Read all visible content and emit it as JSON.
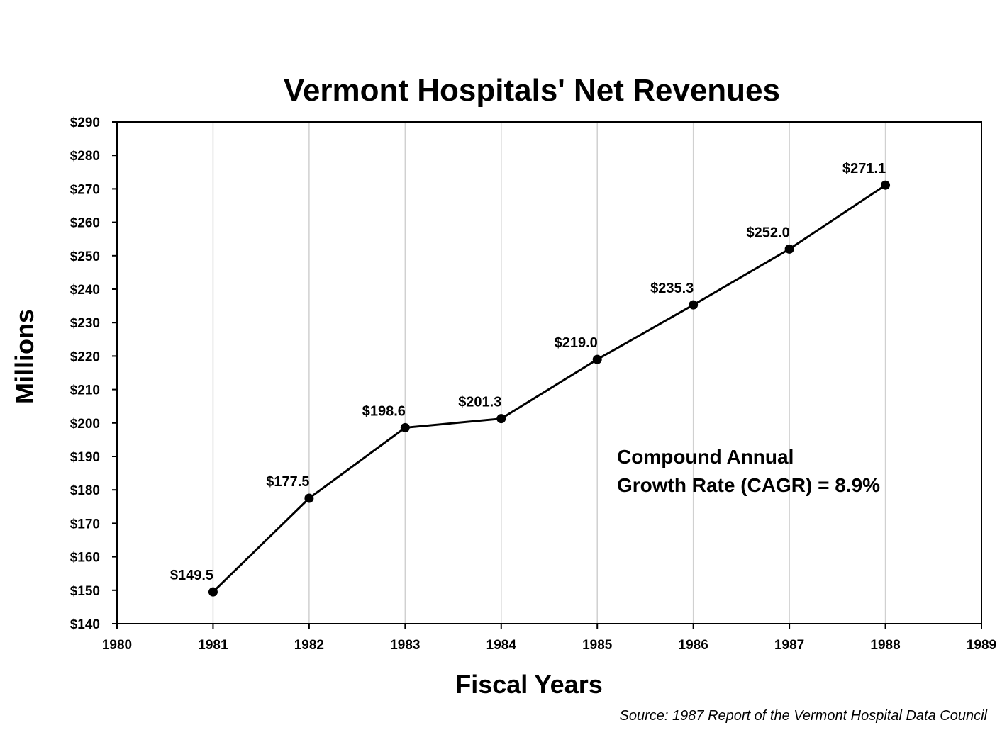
{
  "chart_data": {
    "type": "line",
    "title": "Vermont Hospitals' Net Revenues",
    "xlabel": "Fiscal Years",
    "ylabel": "Millions",
    "xlim": [
      1980,
      1989
    ],
    "ylim": [
      140,
      290
    ],
    "x_ticks": [
      "1980",
      "1981",
      "1982",
      "1983",
      "1984",
      "1985",
      "1986",
      "1987",
      "1988",
      "1989"
    ],
    "y_ticks": [
      "$140",
      "$150",
      "$160",
      "$170",
      "$180",
      "$190",
      "$200",
      "$210",
      "$220",
      "$230",
      "$240",
      "$250",
      "$260",
      "$270",
      "$280",
      "$290"
    ],
    "grid": "vertical",
    "series": [
      {
        "x": [
          1981,
          1982,
          1983,
          1984,
          1985,
          1986,
          1987,
          1988
        ],
        "y": [
          149.5,
          177.5,
          198.6,
          201.3,
          219.0,
          235.3,
          252.0,
          271.1
        ],
        "labels": [
          "$149.5",
          "$177.5",
          "$198.6",
          "$201.3",
          "$219.0",
          "$235.3",
          "$252.0",
          "$271.1"
        ],
        "color": "#000000"
      }
    ],
    "annotation": [
      "Compound Annual",
      "Growth Rate (CAGR) = 8.9%"
    ],
    "source": "Source: 1987 Report of the Vermont Hospital Data Council",
    "colors": {
      "line": "#000000",
      "grid": "#d0d0d0",
      "frame": "#000000"
    }
  }
}
